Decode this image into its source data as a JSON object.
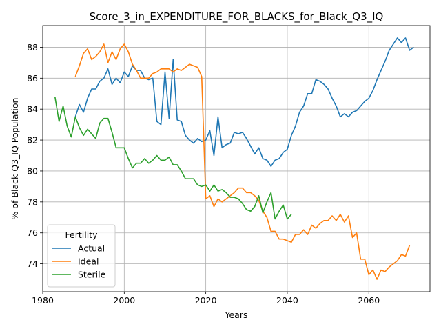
{
  "chart_data": {
    "type": "line",
    "title": "Score_3_in_EXPENDITURE_FOR_BLACKS_for_Black_Q3_IQ",
    "xlabel": "Years",
    "ylabel": "% of Black Q3_IQ Population",
    "xlim": [
      1980,
      2075
    ],
    "ylim": [
      72.2,
      89.4
    ],
    "xticks": [
      1980,
      2000,
      2020,
      2040,
      2060
    ],
    "yticks": [
      74,
      76,
      78,
      80,
      82,
      84,
      86,
      88
    ],
    "grid": true,
    "legend": {
      "title": "Fertility",
      "placement": "lower-left"
    },
    "series": [
      {
        "name": "Actual",
        "color": "#1f77b4",
        "points": [
          [
            1988,
            83.5
          ],
          [
            1989,
            84.3
          ],
          [
            1990,
            83.8
          ],
          [
            1991,
            84.7
          ],
          [
            1992,
            85.3
          ],
          [
            1993,
            85.3
          ],
          [
            1994,
            85.8
          ],
          [
            1995,
            86.0
          ],
          [
            1996,
            86.6
          ],
          [
            1997,
            85.6
          ],
          [
            1998,
            86.0
          ],
          [
            1999,
            85.7
          ],
          [
            2000,
            86.4
          ],
          [
            2001,
            86.1
          ],
          [
            2002,
            86.8
          ],
          [
            2003,
            86.5
          ],
          [
            2004,
            86.5
          ],
          [
            2005,
            86.0
          ],
          [
            2006,
            85.9
          ],
          [
            2007,
            86.0
          ],
          [
            2008,
            83.2
          ],
          [
            2009,
            83.0
          ],
          [
            2010,
            86.4
          ],
          [
            2011,
            83.4
          ],
          [
            2012,
            87.2
          ],
          [
            2013,
            83.3
          ],
          [
            2014,
            83.2
          ],
          [
            2015,
            82.3
          ],
          [
            2016,
            82.0
          ],
          [
            2017,
            81.8
          ],
          [
            2018,
            82.1
          ],
          [
            2019,
            81.9
          ],
          [
            2020,
            82.0
          ],
          [
            2021,
            82.6
          ],
          [
            2022,
            81.0
          ],
          [
            2023,
            83.5
          ],
          [
            2024,
            81.5
          ],
          [
            2025,
            81.7
          ],
          [
            2026,
            81.8
          ],
          [
            2027,
            82.5
          ],
          [
            2028,
            82.4
          ],
          [
            2029,
            82.5
          ],
          [
            2030,
            82.1
          ],
          [
            2031,
            81.6
          ],
          [
            2032,
            81.1
          ],
          [
            2033,
            81.5
          ],
          [
            2034,
            80.8
          ],
          [
            2035,
            80.7
          ],
          [
            2036,
            80.3
          ],
          [
            2037,
            80.7
          ],
          [
            2038,
            80.8
          ],
          [
            2039,
            81.2
          ],
          [
            2040,
            81.4
          ],
          [
            2041,
            82.3
          ],
          [
            2042,
            82.9
          ],
          [
            2043,
            83.8
          ],
          [
            2044,
            84.2
          ],
          [
            2045,
            85.0
          ],
          [
            2046,
            85.0
          ],
          [
            2047,
            85.9
          ],
          [
            2048,
            85.8
          ],
          [
            2049,
            85.6
          ],
          [
            2050,
            85.3
          ],
          [
            2051,
            84.7
          ],
          [
            2052,
            84.2
          ],
          [
            2053,
            83.5
          ],
          [
            2054,
            83.7
          ],
          [
            2055,
            83.5
          ],
          [
            2056,
            83.8
          ],
          [
            2057,
            83.9
          ],
          [
            2058,
            84.2
          ],
          [
            2059,
            84.5
          ],
          [
            2060,
            84.7
          ],
          [
            2061,
            85.2
          ],
          [
            2062,
            85.9
          ],
          [
            2063,
            86.5
          ],
          [
            2064,
            87.1
          ],
          [
            2065,
            87.8
          ],
          [
            2066,
            88.2
          ],
          [
            2067,
            88.6
          ],
          [
            2068,
            88.3
          ],
          [
            2069,
            88.6
          ],
          [
            2070,
            87.8
          ],
          [
            2071,
            88.0
          ]
        ]
      },
      {
        "name": "Ideal",
        "color": "#ff7f0e",
        "points": [
          [
            1988,
            86.1
          ],
          [
            1989,
            86.8
          ],
          [
            1990,
            87.6
          ],
          [
            1991,
            87.9
          ],
          [
            1992,
            87.2
          ],
          [
            1993,
            87.4
          ],
          [
            1994,
            87.7
          ],
          [
            1995,
            88.2
          ],
          [
            1996,
            87.0
          ],
          [
            1997,
            87.7
          ],
          [
            1998,
            87.2
          ],
          [
            1999,
            87.9
          ],
          [
            2000,
            88.2
          ],
          [
            2001,
            87.7
          ],
          [
            2002,
            86.9
          ],
          [
            2003,
            86.5
          ],
          [
            2004,
            86.0
          ],
          [
            2005,
            86.0
          ],
          [
            2006,
            86.0
          ],
          [
            2007,
            86.3
          ],
          [
            2008,
            86.4
          ],
          [
            2009,
            86.6
          ],
          [
            2010,
            86.6
          ],
          [
            2011,
            86.6
          ],
          [
            2012,
            86.4
          ],
          [
            2013,
            86.6
          ],
          [
            2014,
            86.5
          ],
          [
            2015,
            86.7
          ],
          [
            2016,
            86.9
          ],
          [
            2017,
            86.8
          ],
          [
            2018,
            86.7
          ],
          [
            2019,
            86.1
          ],
          [
            2020,
            78.2
          ],
          [
            2021,
            78.4
          ],
          [
            2022,
            77.7
          ],
          [
            2023,
            78.2
          ],
          [
            2024,
            78.0
          ],
          [
            2025,
            78.2
          ],
          [
            2026,
            78.4
          ],
          [
            2027,
            78.6
          ],
          [
            2028,
            78.9
          ],
          [
            2029,
            78.9
          ],
          [
            2030,
            78.6
          ],
          [
            2031,
            78.6
          ],
          [
            2032,
            78.4
          ],
          [
            2033,
            78.1
          ],
          [
            2034,
            77.4
          ],
          [
            2035,
            77.0
          ],
          [
            2036,
            76.1
          ],
          [
            2037,
            76.1
          ],
          [
            2038,
            75.6
          ],
          [
            2039,
            75.6
          ],
          [
            2040,
            75.5
          ],
          [
            2041,
            75.4
          ],
          [
            2042,
            75.9
          ],
          [
            2043,
            75.9
          ],
          [
            2044,
            76.2
          ],
          [
            2045,
            75.9
          ],
          [
            2046,
            76.5
          ],
          [
            2047,
            76.3
          ],
          [
            2048,
            76.6
          ],
          [
            2049,
            76.8
          ],
          [
            2050,
            76.8
          ],
          [
            2051,
            77.1
          ],
          [
            2052,
            76.8
          ],
          [
            2053,
            77.2
          ],
          [
            2054,
            76.7
          ],
          [
            2055,
            77.1
          ],
          [
            2056,
            75.7
          ],
          [
            2057,
            76.0
          ],
          [
            2058,
            74.3
          ],
          [
            2059,
            74.3
          ],
          [
            2060,
            73.3
          ],
          [
            2061,
            73.6
          ],
          [
            2062,
            73.0
          ],
          [
            2063,
            73.6
          ],
          [
            2064,
            73.5
          ],
          [
            2065,
            73.8
          ],
          [
            2066,
            74.0
          ],
          [
            2067,
            74.2
          ],
          [
            2068,
            74.6
          ],
          [
            2069,
            74.5
          ],
          [
            2070,
            75.2
          ]
        ]
      },
      {
        "name": "Sterile",
        "color": "#2ca02c",
        "points": [
          [
            1983,
            84.8
          ],
          [
            1984,
            83.2
          ],
          [
            1985,
            84.2
          ],
          [
            1986,
            82.9
          ],
          [
            1987,
            82.2
          ],
          [
            1988,
            83.5
          ],
          [
            1989,
            82.8
          ],
          [
            1990,
            82.3
          ],
          [
            1991,
            82.7
          ],
          [
            1992,
            82.4
          ],
          [
            1993,
            82.1
          ],
          [
            1994,
            83.1
          ],
          [
            1995,
            83.4
          ],
          [
            1996,
            83.4
          ],
          [
            1997,
            82.5
          ],
          [
            1998,
            81.5
          ],
          [
            1999,
            81.5
          ],
          [
            2000,
            81.5
          ],
          [
            2001,
            80.8
          ],
          [
            2002,
            80.2
          ],
          [
            2003,
            80.5
          ],
          [
            2004,
            80.5
          ],
          [
            2005,
            80.8
          ],
          [
            2006,
            80.5
          ],
          [
            2007,
            80.7
          ],
          [
            2008,
            81.0
          ],
          [
            2009,
            80.7
          ],
          [
            2010,
            80.7
          ],
          [
            2011,
            80.9
          ],
          [
            2012,
            80.4
          ],
          [
            2013,
            80.4
          ],
          [
            2014,
            80.0
          ],
          [
            2015,
            79.5
          ],
          [
            2016,
            79.5
          ],
          [
            2017,
            79.5
          ],
          [
            2018,
            79.1
          ],
          [
            2019,
            79.0
          ],
          [
            2020,
            79.1
          ],
          [
            2021,
            78.7
          ],
          [
            2022,
            79.1
          ],
          [
            2023,
            78.7
          ],
          [
            2024,
            78.8
          ],
          [
            2025,
            78.6
          ],
          [
            2026,
            78.3
          ],
          [
            2027,
            78.3
          ],
          [
            2028,
            78.2
          ],
          [
            2029,
            77.9
          ],
          [
            2030,
            77.5
          ],
          [
            2031,
            77.4
          ],
          [
            2032,
            77.7
          ],
          [
            2033,
            78.4
          ],
          [
            2034,
            77.3
          ],
          [
            2035,
            78.0
          ],
          [
            2036,
            78.6
          ],
          [
            2037,
            76.9
          ],
          [
            2038,
            77.4
          ],
          [
            2039,
            77.8
          ],
          [
            2040,
            76.9
          ],
          [
            2041,
            77.2
          ]
        ]
      }
    ]
  }
}
